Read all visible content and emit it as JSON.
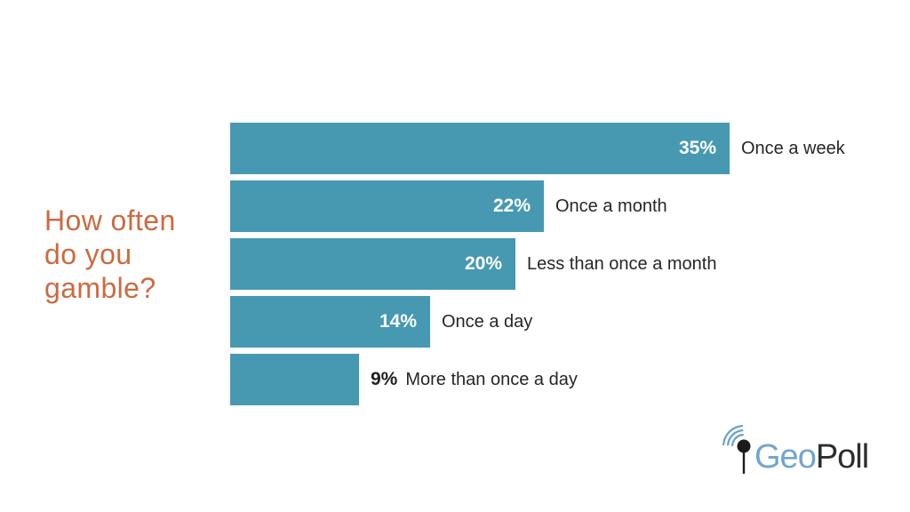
{
  "title": {
    "lines": [
      "How often",
      "do you",
      "gamble?"
    ]
  },
  "chart_data": {
    "type": "bar",
    "orientation": "horizontal",
    "title": "How often do you gamble?",
    "categories": [
      "Once a week",
      "Once a month",
      "Less than once a month",
      "Once a day",
      "More than once a day"
    ],
    "values": [
      35,
      22,
      20,
      14,
      9
    ],
    "value_labels": [
      "35%",
      "22%",
      "20%",
      "14%",
      "9%"
    ],
    "value_label_positions": [
      "inside",
      "inside",
      "inside",
      "inside",
      "outside"
    ],
    "unit": "percent",
    "xlim": [
      0,
      35
    ],
    "grid": "off",
    "legend": "none",
    "bar_color": "#4799B2",
    "value_label_color_inside": "#FFFFFF",
    "value_label_color_outside": "#1F1F1F",
    "category_label_color": "#262626"
  },
  "colors": {
    "background": "#FFFFFF",
    "title": "#CB6A42"
  },
  "logo": {
    "name": "GeoPoll",
    "geo": "Geo",
    "poll": "Poll",
    "geo_color": "#6FA6CE",
    "poll_color": "#2D2D2D",
    "icon": "pin-with-signal-icon",
    "icon_color": "#1B1B1B",
    "signal_color": "#66A0CC"
  }
}
